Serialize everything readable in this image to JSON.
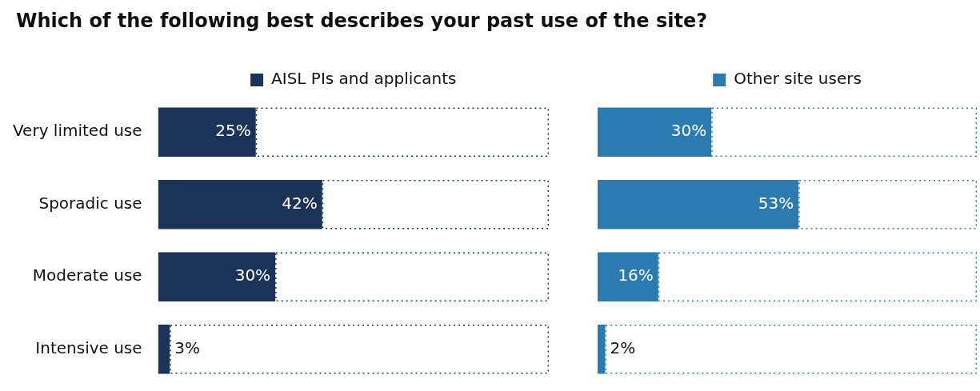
{
  "chart_data": [
    {
      "type": "bar",
      "orientation": "horizontal",
      "stacked": true,
      "title": "Which of the following best describes your past use of the site?",
      "categories": [
        "Very limited use",
        "Sporadic use",
        "Moderate use",
        "Intensive use"
      ],
      "series": [
        {
          "name": "AISL PIs and applicants",
          "color": "#1b3356",
          "values": [
            25,
            42,
            30,
            3
          ],
          "value_labels": [
            "25%",
            "42%",
            "30%",
            "3%"
          ]
        },
        {
          "color": "#1b3356",
          "line_style": "dotted",
          "values": [
            75,
            58,
            70,
            97
          ]
        }
      ],
      "xlim": [
        0,
        100
      ],
      "tick_labels": "y",
      "legend": "top"
    },
    {
      "type": "bar",
      "orientation": "horizontal",
      "stacked": true,
      "categories": [
        null,
        null,
        null,
        null
      ],
      "series": [
        {
          "name": "Other site users",
          "color": "#2b7bb0",
          "values": [
            30,
            53,
            16,
            2
          ],
          "value_labels": [
            "30%",
            "53%",
            "16%",
            "2%"
          ]
        },
        {
          "color": "#2b7bb0",
          "line_style": "dotted",
          "values": [
            70,
            47,
            84,
            98
          ]
        }
      ],
      "xlim": [
        0,
        100
      ],
      "tick_labels": false,
      "legend": "top"
    }
  ]
}
